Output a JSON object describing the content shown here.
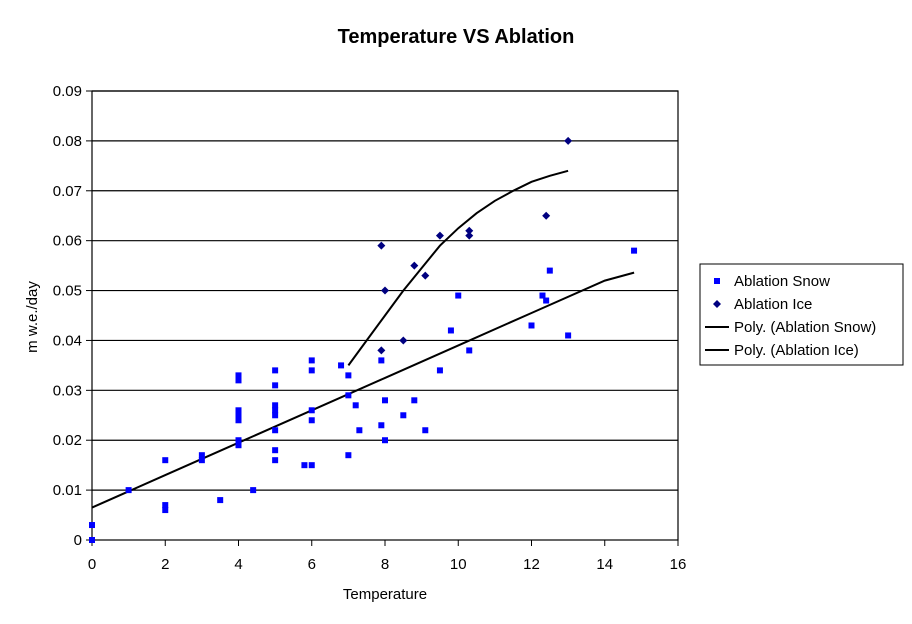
{
  "chart_data": {
    "type": "scatter",
    "title": "Temperature VS Ablation",
    "xlabel": "Temperature",
    "ylabel": "m w.e./day",
    "xlim": [
      0,
      16
    ],
    "ylim": [
      0,
      0.09
    ],
    "x_ticks": [
      "0",
      "2",
      "4",
      "6",
      "8",
      "10",
      "12",
      "14",
      "16"
    ],
    "y_ticks": [
      "0",
      "0.01",
      "0.02",
      "0.03",
      "0.04",
      "0.05",
      "0.06",
      "0.07",
      "0.08",
      "0.09"
    ],
    "grid": "horizontal",
    "legend_position": "right",
    "series": [
      {
        "name": "Ablation Snow",
        "kind": "scatter",
        "marker": "square",
        "color": "#0000ff",
        "points": [
          [
            0,
            0.003
          ],
          [
            0,
            0.0
          ],
          [
            1,
            0.01
          ],
          [
            2,
            0.016
          ],
          [
            2,
            0.007
          ],
          [
            2,
            0.006
          ],
          [
            3,
            0.017
          ],
          [
            3,
            0.016
          ],
          [
            3.5,
            0.008
          ],
          [
            4,
            0.033
          ],
          [
            4,
            0.032
          ],
          [
            4,
            0.026
          ],
          [
            4,
            0.025
          ],
          [
            4,
            0.024
          ],
          [
            4,
            0.02
          ],
          [
            4,
            0.019
          ],
          [
            4.4,
            0.01
          ],
          [
            5,
            0.034
          ],
          [
            5,
            0.031
          ],
          [
            5,
            0.027
          ],
          [
            5,
            0.026
          ],
          [
            5,
            0.025
          ],
          [
            5,
            0.022
          ],
          [
            5,
            0.018
          ],
          [
            5,
            0.016
          ],
          [
            5.8,
            0.015
          ],
          [
            6,
            0.015
          ],
          [
            6,
            0.036
          ],
          [
            6,
            0.034
          ],
          [
            6,
            0.026
          ],
          [
            6,
            0.024
          ],
          [
            6.8,
            0.035
          ],
          [
            7,
            0.033
          ],
          [
            7,
            0.029
          ],
          [
            7,
            0.017
          ],
          [
            7.2,
            0.027
          ],
          [
            7.3,
            0.022
          ],
          [
            7.9,
            0.036
          ],
          [
            7.9,
            0.023
          ],
          [
            8,
            0.028
          ],
          [
            8,
            0.02
          ],
          [
            8.5,
            0.025
          ],
          [
            8.8,
            0.028
          ],
          [
            9.1,
            0.022
          ],
          [
            9.5,
            0.034
          ],
          [
            9.8,
            0.042
          ],
          [
            10,
            0.049
          ],
          [
            10.3,
            0.038
          ],
          [
            12,
            0.043
          ],
          [
            12.3,
            0.049
          ],
          [
            12.4,
            0.048
          ],
          [
            12.5,
            0.054
          ],
          [
            13,
            0.041
          ],
          [
            14.8,
            0.058
          ]
        ]
      },
      {
        "name": "Ablation Ice",
        "kind": "scatter",
        "marker": "diamond",
        "color": "#000080",
        "points": [
          [
            7.9,
            0.059
          ],
          [
            8,
            0.05
          ],
          [
            7.9,
            0.038
          ],
          [
            8.5,
            0.04
          ],
          [
            8.8,
            0.055
          ],
          [
            9.1,
            0.053
          ],
          [
            9.5,
            0.061
          ],
          [
            10.3,
            0.062
          ],
          [
            10.3,
            0.061
          ],
          [
            12.4,
            0.065
          ],
          [
            13,
            0.08
          ]
        ]
      },
      {
        "name": "Poly. (Ablation Snow)",
        "kind": "line",
        "color": "#000000",
        "points": [
          [
            0,
            0.0065
          ],
          [
            2,
            0.013
          ],
          [
            4,
            0.0195
          ],
          [
            6,
            0.026
          ],
          [
            8,
            0.0325
          ],
          [
            10,
            0.039
          ],
          [
            12,
            0.0455
          ],
          [
            14,
            0.052
          ],
          [
            14.8,
            0.0536
          ]
        ]
      },
      {
        "name": "Poly. (Ablation Ice)",
        "kind": "line",
        "color": "#000000",
        "points": [
          [
            7,
            0.035
          ],
          [
            7.5,
            0.04
          ],
          [
            8,
            0.045
          ],
          [
            8.5,
            0.05
          ],
          [
            9,
            0.0545
          ],
          [
            9.5,
            0.059
          ],
          [
            10,
            0.0625
          ],
          [
            10.5,
            0.0655
          ],
          [
            11,
            0.068
          ],
          [
            11.5,
            0.07
          ],
          [
            12,
            0.0718
          ],
          [
            12.5,
            0.073
          ],
          [
            13,
            0.074
          ]
        ]
      }
    ]
  }
}
